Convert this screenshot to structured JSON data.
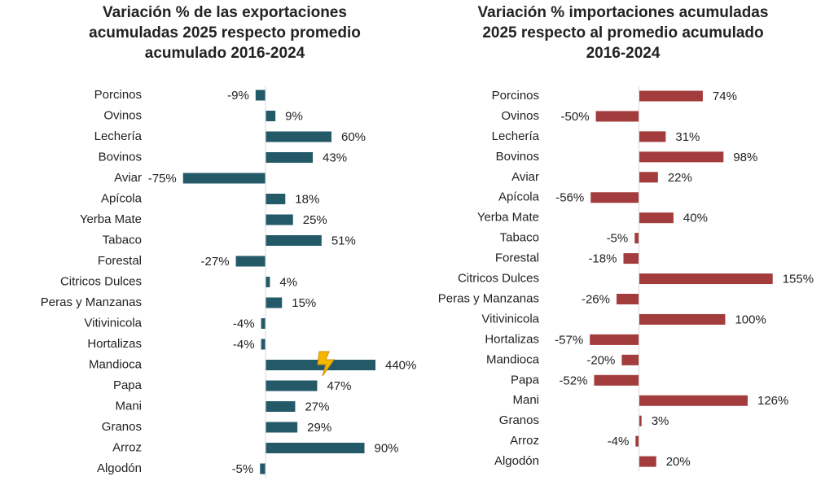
{
  "chart_data": [
    {
      "type": "barh",
      "title": [
        "Variación % de las exportaciones",
        "acumuladas 2025 respecto promedio",
        "acumulado 2016-2024"
      ],
      "categories": [
        "Porcinos",
        "Ovinos",
        "Lechería",
        "Bovinos",
        "Aviar",
        "Apícola",
        "Yerba Mate",
        "Tabaco",
        "Forestal",
        "Citricos Dulces",
        "Peras y Manzanas",
        "Vitivinicola",
        "Hortalizas",
        "Mandioca",
        "Papa",
        "Mani",
        "Granos",
        "Arroz",
        "Algodón"
      ],
      "values": [
        -9,
        9,
        60,
        43,
        -75,
        18,
        25,
        51,
        -27,
        4,
        15,
        -4,
        -4,
        440,
        47,
        27,
        29,
        90,
        -5
      ],
      "value_labels": [
        "-9%",
        "9%",
        "60%",
        "43%",
        "-75%",
        "18%",
        "25%",
        "51%",
        "-27%",
        "4%",
        "15%",
        "-4%",
        "-4%",
        "440%",
        "47%",
        "27%",
        "29%",
        "90%",
        "-5%"
      ],
      "color": "#245a68",
      "xlim": [
        -80,
        100
      ]
    },
    {
      "type": "barh",
      "title": [
        "Variación % importaciones acumuladas",
        "2025 respecto al promedio acumulado",
        "2016-2024"
      ],
      "categories": [
        "Porcinos",
        "Ovinos",
        "Lechería",
        "Bovinos",
        "Aviar",
        "Apícola",
        "Yerba Mate",
        "Tabaco",
        "Forestal",
        "Citricos Dulces",
        "Peras y Manzanas",
        "Vitivinicola",
        "Hortalizas",
        "Mandioca",
        "Papa",
        "Mani",
        "Granos",
        "Arroz",
        "Algodón"
      ],
      "values": [
        74,
        -50,
        31,
        98,
        22,
        -56,
        40,
        -5,
        -18,
        155,
        -26,
        100,
        -57,
        -20,
        -52,
        126,
        3,
        -4,
        20
      ],
      "value_labels": [
        "74%",
        "-50%",
        "31%",
        "98%",
        "22%",
        "-56%",
        "40%",
        "-5%",
        "-18%",
        "155%",
        "-26%",
        "100%",
        "-57%",
        "-20%",
        "-52%",
        "126%",
        "3%",
        "-4%",
        "20%"
      ],
      "color": "#a33c3c",
      "xlim": [
        -60,
        160
      ]
    }
  ]
}
